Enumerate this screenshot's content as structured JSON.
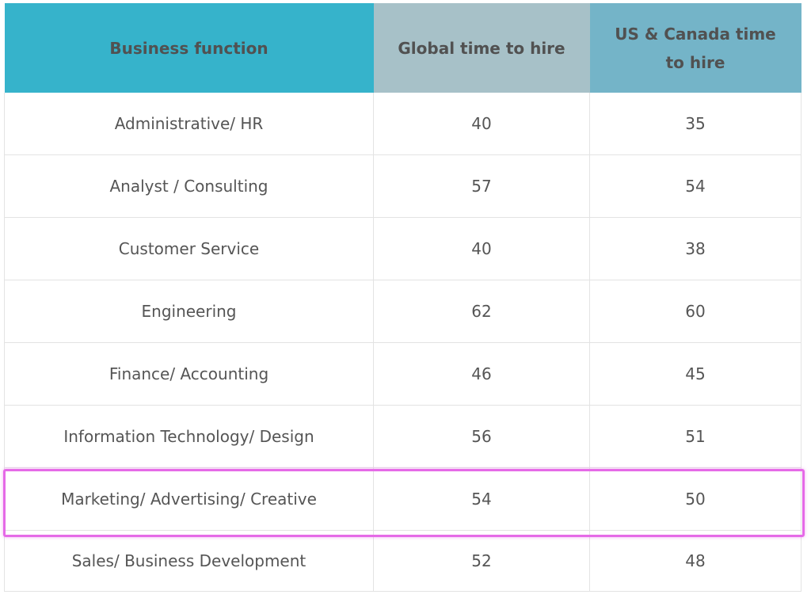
{
  "table": {
    "headers": [
      "Business function",
      "Global time to hire",
      "US & Canada time to hire"
    ],
    "header_colors": [
      "#36b3cb",
      "#a7c1c8",
      "#74b4c8"
    ],
    "rows": [
      {
        "function": "Administrative/ HR",
        "global": "40",
        "us_canada": "35"
      },
      {
        "function": "Analyst / Consulting",
        "global": "57",
        "us_canada": "54"
      },
      {
        "function": "Customer Service",
        "global": "40",
        "us_canada": "38"
      },
      {
        "function": "Engineering",
        "global": "62",
        "us_canada": "60"
      },
      {
        "function": "Finance/ Accounting",
        "global": "46",
        "us_canada": "45"
      },
      {
        "function": "Information Technology/ Design",
        "global": "56",
        "us_canada": "51"
      },
      {
        "function": "Marketing/ Advertising/ Creative",
        "global": "54",
        "us_canada": "50"
      },
      {
        "function": "Sales/ Business Development",
        "global": "52",
        "us_canada": "48"
      }
    ],
    "highlighted_row": "Marketing/ Advertising/ Creative",
    "highlight_color": "#e56ae7"
  }
}
